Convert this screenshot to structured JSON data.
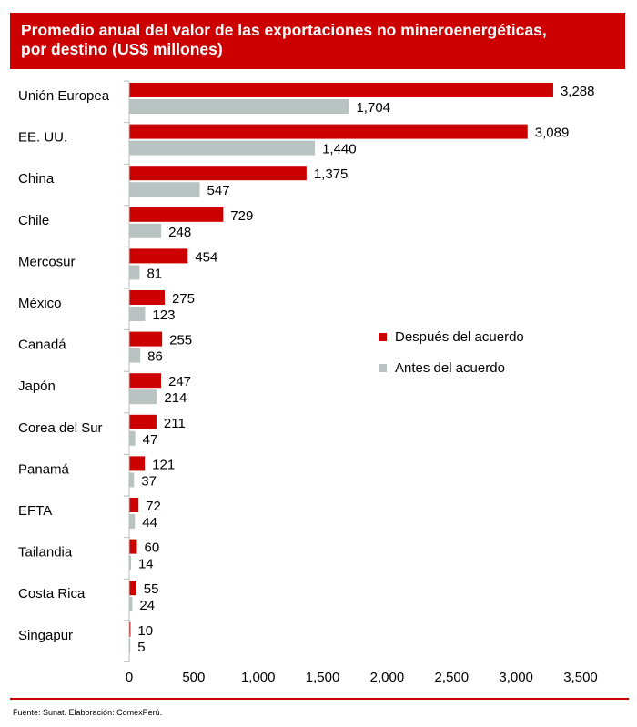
{
  "chart_data": {
    "type": "bar",
    "orientation": "horizontal",
    "title_line1": "Promedio anual del valor de las exportaciones no mineroenergéticas,",
    "title_line2": "por destino (US$ millones)",
    "categories": [
      "Unión Europea",
      "EE. UU.",
      "China",
      "Chile",
      "Mercosur",
      "México",
      "Canadá",
      "Japón",
      "Corea del Sur",
      "Panamá",
      "EFTA",
      "Tailandia",
      "Costa Rica",
      "Singapur"
    ],
    "series": [
      {
        "name": "Después del acuerdo",
        "color": "#cc0000",
        "values": [
          3288,
          3089,
          1375,
          729,
          454,
          275,
          255,
          247,
          211,
          121,
          72,
          60,
          55,
          10
        ],
        "labels": [
          "3,288",
          "3,089",
          "1,375",
          "729",
          "454",
          "275",
          "255",
          "247",
          "211",
          "121",
          "72",
          "60",
          "55",
          "10"
        ]
      },
      {
        "name": "Antes del acuerdo",
        "color": "#b9c4c2",
        "values": [
          1704,
          1440,
          547,
          248,
          81,
          123,
          86,
          214,
          47,
          37,
          44,
          14,
          24,
          5
        ],
        "labels": [
          "1,704",
          "1,440",
          "547",
          "248",
          "81",
          "123",
          "86",
          "214",
          "47",
          "37",
          "44",
          "14",
          "24",
          "5"
        ]
      }
    ],
    "xlim": [
      0,
      3500
    ],
    "xticks": [
      0,
      500,
      1000,
      1500,
      2000,
      2500,
      3000,
      3500
    ],
    "xtick_labels": [
      "0",
      "500",
      "1,000",
      "1,500",
      "2,000",
      "2,500",
      "3,000",
      "3,500"
    ],
    "legend_position": "right",
    "grid": false
  },
  "source": "Fuente: Sunat. Elaboración: ComexPerú."
}
